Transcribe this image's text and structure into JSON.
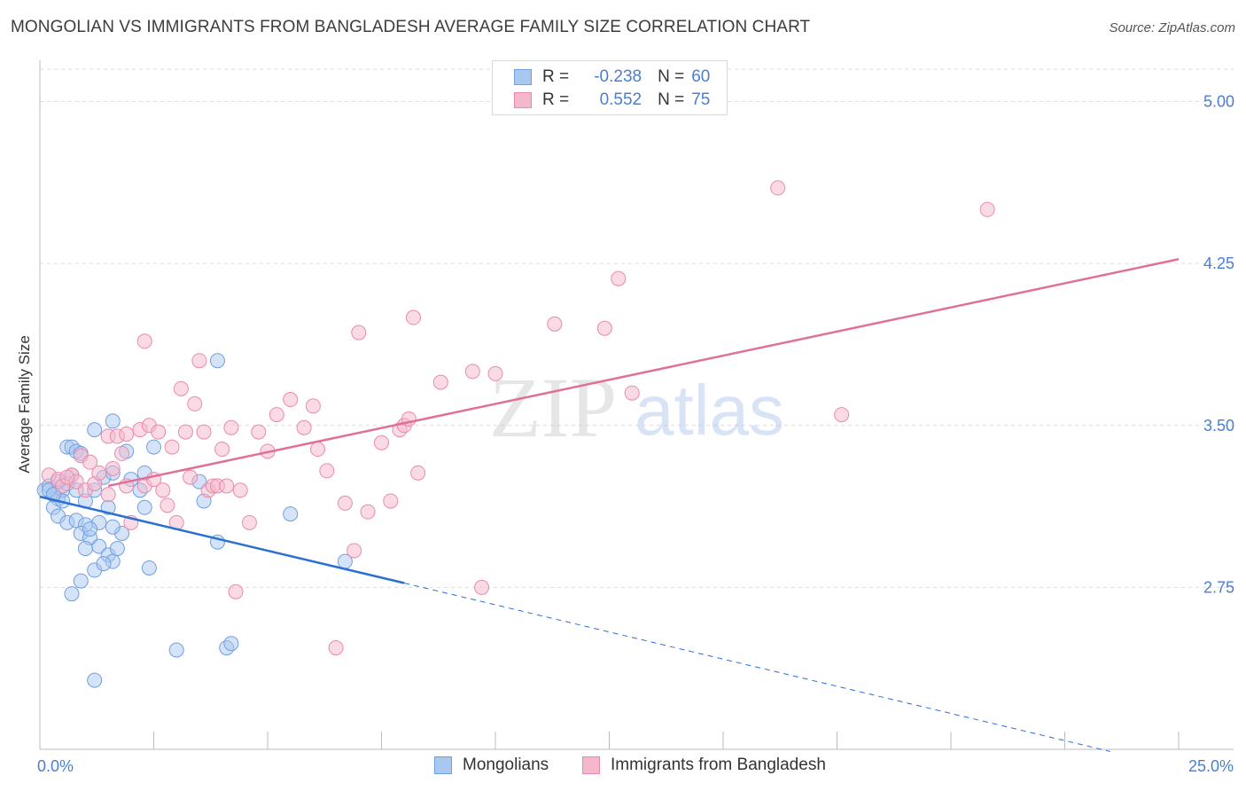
{
  "chart_data": {
    "type": "scatter",
    "title": "MONGOLIAN VS IMMIGRANTS FROM BANGLADESH AVERAGE FAMILY SIZE CORRELATION CHART",
    "source": "Source: ZipAtlas.com",
    "ylabel": "Average Family Size",
    "xlim": [
      0,
      25
    ],
    "ylim": [
      2.0,
      5.15
    ],
    "y_ticks": [
      2.75,
      3.5,
      4.25,
      5.0
    ],
    "y_tick_labels": [
      "2.75",
      "3.50",
      "4.25",
      "5.00"
    ],
    "x_tick_labels": [
      "0.0%",
      "25.0%"
    ],
    "grid": true,
    "watermark": {
      "zip": "ZIP",
      "atlas": "atlas"
    },
    "stats_legend": {
      "r_label": "R =",
      "n_label": "N =",
      "rows": [
        {
          "r": "-0.238",
          "n": "60"
        },
        {
          "r": "0.552",
          "n": "75"
        }
      ]
    },
    "series": [
      {
        "name": "Mongolians",
        "color": "#a9c8f0",
        "stroke": "#6f9fe0",
        "line_color": "#2a6fd2",
        "trend": {
          "x0": 0,
          "y0": 3.17,
          "x1": 8.0,
          "y1": 2.77,
          "dashed_to_x": 23.5,
          "dashed_to_y": 1.99
        },
        "points": [
          [
            0.1,
            3.2
          ],
          [
            0.2,
            3.22
          ],
          [
            0.3,
            3.18
          ],
          [
            0.4,
            3.16
          ],
          [
            0.5,
            3.2
          ],
          [
            0.6,
            3.23
          ],
          [
            0.3,
            3.12
          ],
          [
            0.4,
            3.08
          ],
          [
            0.6,
            3.05
          ],
          [
            0.8,
            3.06
          ],
          [
            1.0,
            3.04
          ],
          [
            0.9,
            3.0
          ],
          [
            1.1,
            2.98
          ],
          [
            1.0,
            2.93
          ],
          [
            1.3,
            2.94
          ],
          [
            1.5,
            2.9
          ],
          [
            1.6,
            2.87
          ],
          [
            1.2,
            2.83
          ],
          [
            1.4,
            2.86
          ],
          [
            0.9,
            2.78
          ],
          [
            0.7,
            2.72
          ],
          [
            1.7,
            2.93
          ],
          [
            1.8,
            3.0
          ],
          [
            1.5,
            3.12
          ],
          [
            1.0,
            3.15
          ],
          [
            0.8,
            3.2
          ],
          [
            1.2,
            3.2
          ],
          [
            1.4,
            3.26
          ],
          [
            1.6,
            3.28
          ],
          [
            1.9,
            3.38
          ],
          [
            1.2,
            3.48
          ],
          [
            1.6,
            3.52
          ],
          [
            0.6,
            3.4
          ],
          [
            0.7,
            3.4
          ],
          [
            0.8,
            3.38
          ],
          [
            0.9,
            3.37
          ],
          [
            2.0,
            3.25
          ],
          [
            2.3,
            3.28
          ],
          [
            2.2,
            3.2
          ],
          [
            2.3,
            3.12
          ],
          [
            2.5,
            3.4
          ],
          [
            2.4,
            2.84
          ],
          [
            3.0,
            2.46
          ],
          [
            3.5,
            3.24
          ],
          [
            3.6,
            3.15
          ],
          [
            3.9,
            3.8
          ],
          [
            3.9,
            2.96
          ],
          [
            4.1,
            2.47
          ],
          [
            4.2,
            2.49
          ],
          [
            1.2,
            2.32
          ],
          [
            5.5,
            3.09
          ],
          [
            6.7,
            2.87
          ],
          [
            0.2,
            3.2
          ],
          [
            0.5,
            3.15
          ],
          [
            1.3,
            3.05
          ],
          [
            0.7,
            3.27
          ],
          [
            0.4,
            3.24
          ],
          [
            1.1,
            3.02
          ],
          [
            1.6,
            3.03
          ],
          [
            0.3,
            3.18
          ]
        ]
      },
      {
        "name": "Immigrants from Bangladesh",
        "color": "#f5b8cb",
        "stroke": "#ea8aa8",
        "line_color": "#e07098",
        "trend": {
          "x0": 1.5,
          "y0": 3.22,
          "x1": 25.0,
          "y1": 4.27
        },
        "points": [
          [
            0.2,
            3.27
          ],
          [
            0.4,
            3.25
          ],
          [
            0.5,
            3.22
          ],
          [
            0.7,
            3.27
          ],
          [
            0.8,
            3.24
          ],
          [
            0.9,
            3.36
          ],
          [
            1.0,
            3.2
          ],
          [
            1.2,
            3.23
          ],
          [
            1.3,
            3.28
          ],
          [
            1.5,
            3.18
          ],
          [
            1.6,
            3.3
          ],
          [
            1.5,
            3.45
          ],
          [
            1.7,
            3.45
          ],
          [
            1.8,
            3.37
          ],
          [
            1.9,
            3.22
          ],
          [
            2.0,
            3.05
          ],
          [
            2.2,
            3.48
          ],
          [
            2.3,
            3.22
          ],
          [
            2.4,
            3.5
          ],
          [
            2.6,
            3.47
          ],
          [
            2.5,
            3.25
          ],
          [
            2.7,
            3.2
          ],
          [
            2.8,
            3.13
          ],
          [
            2.9,
            3.4
          ],
          [
            3.0,
            3.05
          ],
          [
            3.1,
            3.67
          ],
          [
            3.2,
            3.47
          ],
          [
            3.3,
            3.26
          ],
          [
            3.4,
            3.6
          ],
          [
            3.5,
            3.8
          ],
          [
            3.6,
            3.47
          ],
          [
            3.7,
            3.2
          ],
          [
            3.8,
            3.22
          ],
          [
            3.9,
            3.22
          ],
          [
            4.0,
            3.39
          ],
          [
            4.1,
            3.22
          ],
          [
            4.2,
            3.49
          ],
          [
            4.3,
            2.73
          ],
          [
            4.4,
            3.2
          ],
          [
            4.6,
            3.05
          ],
          [
            4.8,
            3.47
          ],
          [
            5.0,
            3.38
          ],
          [
            5.2,
            3.55
          ],
          [
            5.5,
            3.62
          ],
          [
            5.8,
            3.49
          ],
          [
            6.0,
            3.59
          ],
          [
            6.1,
            3.39
          ],
          [
            6.3,
            3.29
          ],
          [
            6.5,
            2.47
          ],
          [
            6.7,
            3.14
          ],
          [
            6.9,
            2.92
          ],
          [
            7.0,
            3.93
          ],
          [
            7.2,
            3.1
          ],
          [
            7.5,
            3.42
          ],
          [
            7.7,
            3.15
          ],
          [
            7.9,
            3.48
          ],
          [
            8.0,
            3.5
          ],
          [
            8.1,
            3.53
          ],
          [
            8.2,
            4.0
          ],
          [
            8.3,
            3.28
          ],
          [
            8.8,
            3.7
          ],
          [
            9.5,
            3.75
          ],
          [
            9.7,
            2.75
          ],
          [
            10.0,
            3.74
          ],
          [
            11.3,
            3.97
          ],
          [
            12.4,
            3.95
          ],
          [
            12.7,
            4.18
          ],
          [
            13.0,
            3.65
          ],
          [
            16.2,
            4.6
          ],
          [
            17.6,
            3.55
          ],
          [
            20.8,
            4.5
          ],
          [
            2.3,
            3.89
          ],
          [
            1.9,
            3.46
          ],
          [
            0.6,
            3.26
          ],
          [
            1.1,
            3.33
          ]
        ]
      }
    ]
  }
}
